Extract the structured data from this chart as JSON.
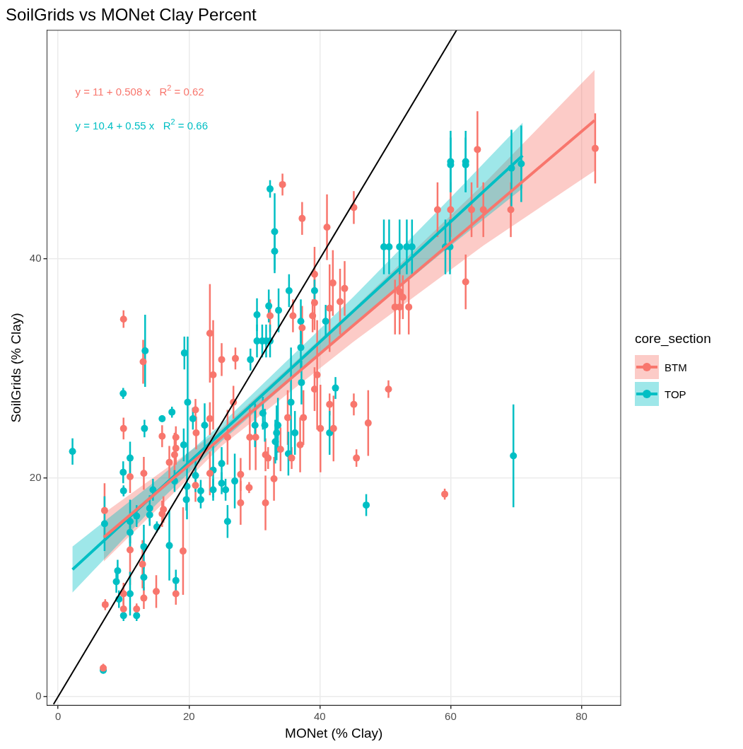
{
  "chart_data": {
    "type": "scatter",
    "title": "SoilGrids vs MONet Clay Percent",
    "xlabel": "MONet (% Clay)",
    "ylabel": "SoilGrids (% Clay)",
    "legend_title": "core_section",
    "legend": "right",
    "grid": true,
    "xlim": [
      -1.7,
      86
    ],
    "xticks": [
      0,
      20,
      40,
      60,
      80
    ],
    "ylim": [
      -0.8,
      60.9
    ],
    "yticks": [
      0,
      20,
      40
    ],
    "annotations": [
      "y = 11 + 0.508 x   R$^{2}$ = 0.62",
      "y = 10.4 + 0.55 x   R$^{2}$ = 0.66"
    ],
    "series": [
      {
        "name": "BTM",
        "marker": "circle",
        "color": "#f8766d",
        "x": [
          7.1,
          6.9,
          7.2,
          10.0,
          10.0,
          10.0,
          10.0,
          11.0,
          11.0,
          12.0,
          13.1,
          12.9,
          13.1,
          13.0,
          15.0,
          15.9,
          16.1,
          15.9,
          17.0,
          17.8,
          18.0,
          18.0,
          18.0,
          19.1,
          21.0,
          21.0,
          21.1,
          23.2,
          23.2,
          23.2,
          23.7,
          25.0,
          25.9,
          26.8,
          27.1,
          27.9,
          27.9,
          29.2,
          29.3,
          30.2,
          31.7,
          32.1,
          31.7,
          32.4,
          33.0,
          34.0,
          34.3,
          35.1,
          35.7,
          35.9,
          37.0,
          37.3,
          37.3,
          37.5,
          38.9,
          39.2,
          39.2,
          39.2,
          39.6,
          40.1,
          41.1,
          41.5,
          41.5,
          42.0,
          42.1,
          43.1,
          43.8,
          45.2,
          45.2,
          45.6,
          47.4,
          50.5,
          51.5,
          52.2,
          52.2,
          52.7,
          53.6,
          58.0,
          59.1,
          60.0,
          62.3,
          63.2,
          64.1,
          65.0,
          69.2,
          82.1
        ],
        "values": [
          17.0,
          2.6,
          8.4,
          34.5,
          24.5,
          9.4,
          8.0,
          20.1,
          13.4,
          8.0,
          20.4,
          12.1,
          9.0,
          30.6,
          9.6,
          23.8,
          17.1,
          16.7,
          21.4,
          22.1,
          23.7,
          22.7,
          9.4,
          13.3,
          26.2,
          19.3,
          24.1,
          33.2,
          25.4,
          20.4,
          29.4,
          30.8,
          23.7,
          26.9,
          30.9,
          20.3,
          17.7,
          19.1,
          23.7,
          23.7,
          22.1,
          21.8,
          17.7,
          34.8,
          19.9,
          22.6,
          46.8,
          25.5,
          21.8,
          34.8,
          23.0,
          43.7,
          33.7,
          25.5,
          34.8,
          38.6,
          36.0,
          28.1,
          29.4,
          24.5,
          42.9,
          35.5,
          26.7,
          37.8,
          24.5,
          36.1,
          37.3,
          44.7,
          26.7,
          21.8,
          25.0,
          28.1,
          35.6,
          35.6,
          37.0,
          36.5,
          35.6,
          44.5,
          18.5,
          44.5,
          37.9,
          44.5,
          50.0,
          44.5,
          44.5,
          50.1
        ],
        "errors": [
          2.5,
          0.4,
          0.5,
          0.8,
          1.0,
          1.0,
          0.8,
          1.5,
          3.2,
          0.5,
          1.5,
          2.2,
          1.0,
          2.0,
          1.5,
          1.0,
          1.2,
          1.2,
          1.5,
          2.0,
          1.0,
          1.5,
          1.0,
          4.0,
          1.0,
          1.5,
          1.5,
          4.5,
          1.5,
          2.0,
          5.0,
          1.5,
          2.5,
          1.5,
          1.0,
          1.5,
          2.0,
          0.5,
          3.0,
          3.0,
          1.5,
          1.0,
          2.5,
          1.5,
          2.0,
          2.0,
          1.0,
          2.5,
          1.0,
          1.5,
          2.5,
          1.5,
          2.0,
          2.5,
          1.5,
          2.5,
          2.5,
          2.0,
          5.0,
          4.0,
          3.0,
          4.0,
          1.0,
          3.0,
          3.0,
          3.0,
          2.5,
          1.5,
          1.0,
          0.8,
          3.0,
          0.8,
          2.5,
          2.5,
          2.5,
          2.0,
          2.5,
          2.5,
          0.5,
          2.5,
          2.5,
          2.5,
          3.5,
          2.5,
          2.5,
          3.2
        ]
      },
      {
        "name": "TOP",
        "marker": "circle",
        "color": "#00bfc4",
        "x": [
          2.2,
          6.9,
          7.1,
          8.9,
          9.1,
          9.3,
          9.95,
          9.95,
          10.0,
          10.0,
          11.0,
          11.0,
          11.0,
          11.0,
          12.0,
          12.0,
          13.1,
          13.1,
          13.3,
          13.2,
          14.0,
          14.0,
          14.5,
          15.1,
          15.9,
          17.0,
          17.4,
          17.8,
          18.0,
          19.2,
          19.3,
          19.6,
          19.7,
          19.8,
          20.6,
          21.0,
          21.8,
          21.8,
          22.4,
          23.7,
          23.7,
          25.0,
          25.0,
          25.6,
          25.9,
          27.0,
          29.4,
          30.1,
          30.4,
          30.4,
          31.2,
          31.3,
          31.6,
          31.8,
          32.2,
          32.4,
          32.4,
          33.1,
          33.1,
          33.2,
          33.4,
          33.6,
          33.7,
          35.2,
          35.3,
          35.6,
          36.2,
          37.1,
          37.1,
          37.2,
          39.2,
          40.9,
          41.5,
          42.4,
          47.1,
          49.8,
          50.6,
          52.2,
          53.3,
          54.1,
          59.2,
          59.9,
          60.0,
          60.0,
          62.3,
          62.3,
          69.3,
          69.6,
          70.8
        ],
        "values": [
          22.4,
          2.4,
          15.8,
          10.5,
          11.5,
          8.9,
          27.7,
          20.5,
          18.8,
          7.4,
          21.8,
          16.0,
          15.0,
          9.4,
          16.5,
          7.4,
          13.7,
          10.9,
          31.6,
          24.5,
          17.2,
          16.6,
          18.9,
          15.5,
          25.4,
          13.8,
          26.0,
          19.7,
          10.6,
          23.0,
          31.4,
          18.0,
          19.2,
          26.9,
          25.4,
          20.2,
          18.0,
          18.8,
          24.8,
          18.9,
          20.7,
          21.3,
          19.5,
          18.9,
          16.0,
          19.7,
          30.8,
          24.8,
          34.9,
          32.5,
          32.5,
          25.9,
          24.8,
          32.5,
          35.7,
          46.4,
          32.5,
          42.5,
          40.7,
          23.3,
          24.1,
          24.8,
          35.3,
          22.2,
          37.1,
          26.9,
          24.1,
          34.3,
          31.9,
          28.7,
          37.1,
          34.3,
          24.1,
          28.2,
          17.5,
          41.1,
          41.1,
          41.1,
          41.1,
          41.1,
          41.1,
          41.1,
          48.9,
          48.6,
          48.9,
          48.6,
          48.3,
          22.0,
          48.7
        ],
        "errors": [
          1.2,
          0.3,
          2.5,
          1.0,
          1.0,
          0.8,
          0.5,
          1.0,
          0.5,
          0.5,
          1.5,
          2.0,
          1.5,
          2.0,
          1.0,
          0.5,
          2.0,
          1.2,
          3.3,
          0.8,
          1.2,
          1.0,
          1.0,
          0.5,
          0.3,
          3.2,
          0.5,
          1.0,
          1.0,
          1.5,
          1.5,
          1.0,
          3.0,
          6.0,
          1.0,
          1.5,
          0.8,
          1.0,
          2.0,
          1.0,
          2.5,
          1.5,
          1.0,
          1.0,
          1.5,
          2.5,
          1.0,
          2.0,
          1.5,
          1.5,
          1.5,
          1.5,
          1.5,
          1.5,
          1.5,
          0.8,
          1.5,
          3.5,
          2.0,
          2.0,
          2.5,
          2.5,
          2.0,
          2.0,
          1.5,
          5.0,
          2.0,
          2.0,
          2.0,
          2.0,
          1.0,
          1.5,
          2.0,
          1.0,
          1.0,
          2.5,
          2.5,
          2.5,
          2.5,
          2.5,
          2.5,
          2.5,
          2.8,
          2.5,
          2.8,
          2.5,
          3.5,
          4.7,
          3.5
        ]
      },
      {
        "type": "line",
        "color": "#f8766d",
        "x": [
          7,
          25,
          45,
          65,
          82
        ],
        "values": [
          14.56,
          23.7,
          33.86,
          44.02,
          52.66
        ],
        "lower": [
          12.36,
          22.9,
          32.36,
          41.22,
          48.06
        ],
        "upper": [
          16.76,
          24.5,
          35.36,
          46.82,
          57.26
        ]
      },
      {
        "type": "line",
        "color": "#00bfc4",
        "x": [
          2.2,
          15,
          25,
          45,
          60,
          71
        ],
        "values": [
          11.61,
          18.65,
          24.15,
          35.15,
          43.4,
          49.45
        ],
        "lower": [
          9.51,
          17.55,
          23.35,
          33.85,
          41.2,
          46.45
        ],
        "upper": [
          13.71,
          19.75,
          24.95,
          36.45,
          45.6,
          52.45
        ]
      },
      {
        "type": "line",
        "color": "#000000",
        "x": [
          -0.7,
          60.9
        ],
        "values": [
          -0.7,
          60.9
        ]
      }
    ]
  }
}
